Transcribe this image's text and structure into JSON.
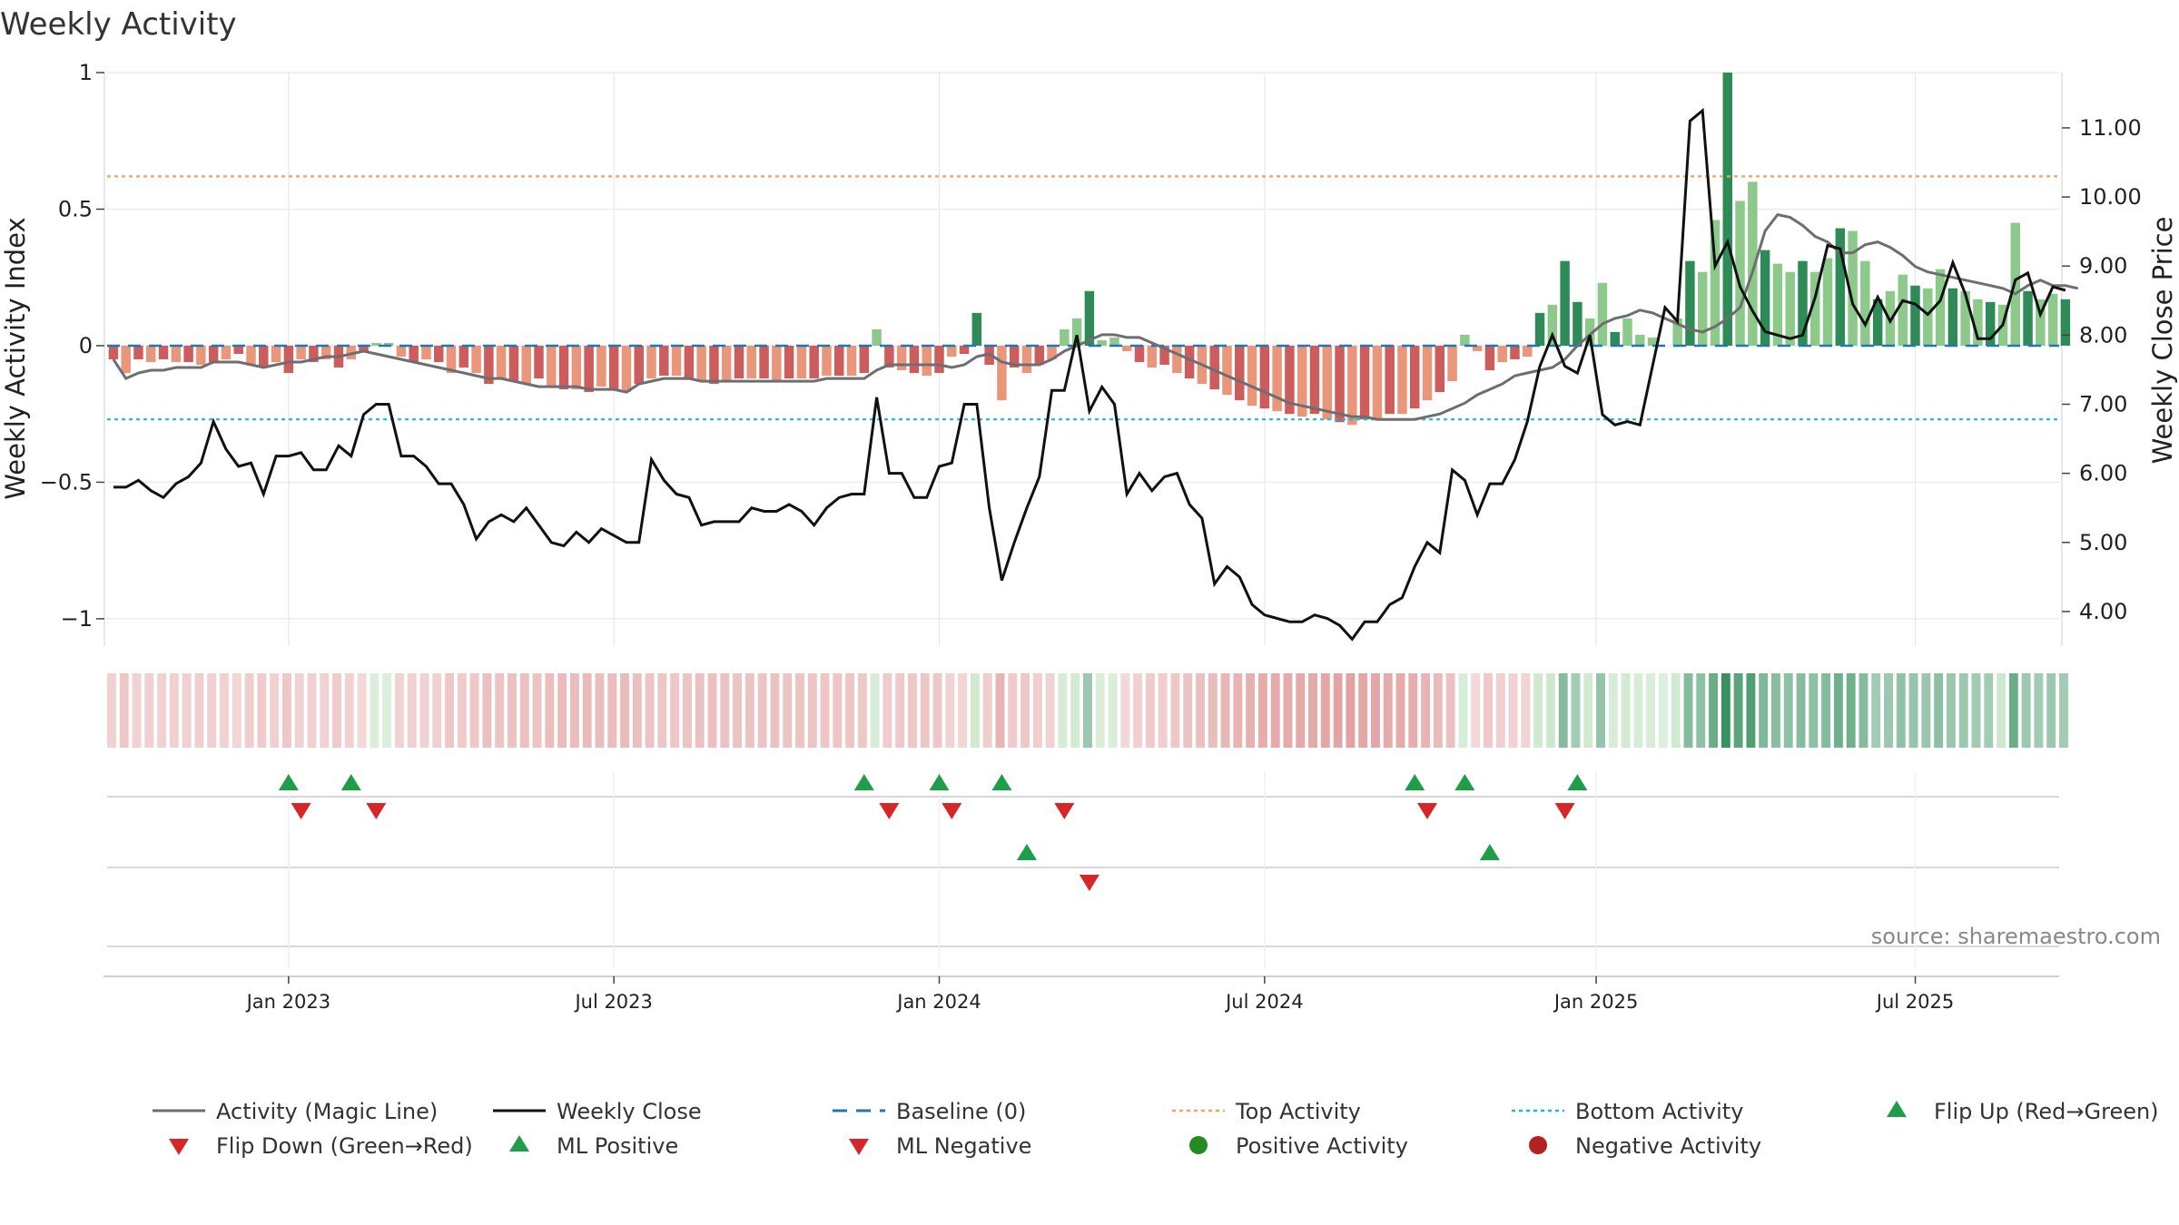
{
  "chart_data": {
    "type": "bar",
    "title": "Weekly Activity",
    "ylabel_left": "Weekly Activity Index",
    "ylabel_right": "Weekly Close Price",
    "source": "source: sharemaestro.com",
    "x_start_week": 0,
    "weeks_total": 156,
    "x_ticks": [
      {
        "label": "Jan 2023",
        "week": 14
      },
      {
        "label": "Jul 2023",
        "week": 40
      },
      {
        "label": "Jan 2024",
        "week": 66
      },
      {
        "label": "Jul 2024",
        "week": 92
      },
      {
        "label": "Jan 2025",
        "week": 118.5
      },
      {
        "label": "Jul 2025",
        "week": 144
      }
    ],
    "y_left": {
      "min": -1.1,
      "max": 1.0,
      "ticks": [
        1,
        0.5,
        0,
        -0.5,
        -1
      ],
      "tick_labels": [
        "1",
        "0.5",
        "0",
        "−0.5",
        "−1"
      ]
    },
    "y_right": {
      "min": 3.5,
      "max": 11.8,
      "ticks": [
        11,
        10,
        9,
        8,
        7,
        6,
        5,
        4
      ],
      "tick_labels": [
        "11.00",
        "10.00",
        "9.00",
        "8.00",
        "7.00",
        "6.00",
        "5.00",
        "4.00"
      ]
    },
    "reference_lines": {
      "top_activity": 0.62,
      "bottom_activity": -0.27,
      "baseline": 0
    },
    "series": [
      {
        "name": "Activity (Magic Line)",
        "values": [
          -0.05,
          -0.12,
          -0.1,
          -0.09,
          -0.09,
          -0.08,
          -0.08,
          -0.08,
          -0.06,
          -0.06,
          -0.06,
          -0.07,
          -0.08,
          -0.07,
          -0.06,
          -0.06,
          -0.05,
          -0.04,
          -0.04,
          -0.03,
          -0.02,
          -0.03,
          -0.04,
          -0.05,
          -0.06,
          -0.07,
          -0.08,
          -0.09,
          -0.1,
          -0.11,
          -0.12,
          -0.12,
          -0.13,
          -0.14,
          -0.15,
          -0.15,
          -0.15,
          -0.15,
          -0.16,
          -0.16,
          -0.16,
          -0.17,
          -0.14,
          -0.13,
          -0.12,
          -0.12,
          -0.12,
          -0.13,
          -0.13,
          -0.13,
          -0.13,
          -0.13,
          -0.13,
          -0.13,
          -0.13,
          -0.13,
          -0.13,
          -0.12,
          -0.12,
          -0.12,
          -0.12,
          -0.09,
          -0.07,
          -0.07,
          -0.07,
          -0.07,
          -0.07,
          -0.08,
          -0.07,
          -0.04,
          -0.03,
          -0.06,
          -0.07,
          -0.07,
          -0.07,
          -0.05,
          -0.02,
          0.0,
          0.02,
          0.04,
          0.04,
          0.03,
          0.03,
          0.01,
          -0.01,
          -0.03,
          -0.05,
          -0.07,
          -0.09,
          -0.11,
          -0.13,
          -0.15,
          -0.17,
          -0.19,
          -0.21,
          -0.22,
          -0.23,
          -0.24,
          -0.25,
          -0.26,
          -0.26,
          -0.27,
          -0.27,
          -0.27,
          -0.27,
          -0.26,
          -0.25,
          -0.23,
          -0.21,
          -0.18,
          -0.16,
          -0.14,
          -0.11,
          -0.1,
          -0.09,
          -0.08,
          -0.05,
          0.0,
          0.04,
          0.08,
          0.1,
          0.11,
          0.13,
          0.12,
          0.1,
          0.08,
          0.06,
          0.05,
          0.07,
          0.1,
          0.14,
          0.27,
          0.42,
          0.48,
          0.47,
          0.44,
          0.4,
          0.38,
          0.34,
          0.34,
          0.37,
          0.38,
          0.36,
          0.33,
          0.29,
          0.27,
          0.26,
          0.25,
          0.24,
          0.23,
          0.22,
          0.21,
          0.19,
          0.22,
          0.24,
          0.22,
          0.22,
          0.21
        ]
      },
      {
        "name": "Weekly Close",
        "values": [
          5.8,
          5.8,
          5.9,
          5.75,
          5.65,
          5.85,
          5.95,
          6.15,
          6.75,
          6.35,
          6.1,
          6.15,
          5.7,
          6.25,
          6.25,
          6.3,
          6.05,
          6.05,
          6.4,
          6.25,
          6.85,
          7.0,
          7.0,
          6.25,
          6.25,
          6.1,
          5.85,
          5.85,
          5.55,
          5.05,
          5.3,
          5.4,
          5.3,
          5.5,
          5.25,
          5.0,
          4.95,
          5.15,
          5.0,
          5.2,
          5.1,
          5.0,
          5.0,
          6.2,
          5.9,
          5.7,
          5.65,
          5.25,
          5.3,
          5.3,
          5.3,
          5.5,
          5.45,
          5.45,
          5.55,
          5.45,
          5.25,
          5.5,
          5.65,
          5.7,
          5.7,
          7.1,
          6.0,
          6.0,
          5.65,
          5.65,
          6.1,
          6.15,
          7.0,
          7.0,
          5.5,
          4.45,
          5.0,
          5.5,
          5.95,
          7.2,
          7.2,
          8.0,
          6.9,
          7.25,
          7.0,
          5.7,
          6.0,
          5.75,
          5.95,
          6.0,
          5.55,
          5.35,
          4.4,
          4.65,
          4.5,
          4.1,
          3.95,
          3.9,
          3.85,
          3.85,
          3.95,
          3.9,
          3.8,
          3.6,
          3.85,
          3.85,
          4.1,
          4.2,
          4.65,
          5.0,
          4.85,
          6.05,
          5.9,
          5.4,
          5.85,
          5.85,
          6.2,
          6.75,
          7.55,
          8.0,
          7.55,
          7.45,
          8.0,
          6.85,
          6.7,
          6.75,
          6.7,
          7.55,
          8.4,
          8.2,
          11.1,
          11.25,
          9.0,
          9.35,
          8.7,
          8.35,
          8.05,
          8.0,
          7.95,
          8.0,
          8.55,
          9.3,
          9.25,
          8.45,
          8.15,
          8.55,
          8.2,
          8.5,
          8.45,
          8.3,
          8.5,
          9.05,
          8.6,
          7.95,
          7.95,
          8.15,
          8.8,
          8.9,
          8.3,
          8.7,
          8.65
        ]
      }
    ],
    "activity_bars": [
      -0.05,
      -0.1,
      -0.05,
      -0.06,
      -0.05,
      -0.06,
      -0.06,
      -0.07,
      -0.06,
      -0.05,
      -0.03,
      -0.07,
      -0.08,
      -0.06,
      -0.1,
      -0.05,
      -0.06,
      -0.05,
      -0.08,
      -0.05,
      -0.02,
      0.01,
      0.01,
      -0.04,
      -0.06,
      -0.05,
      -0.06,
      -0.1,
      -0.08,
      -0.1,
      -0.14,
      -0.12,
      -0.13,
      -0.14,
      -0.12,
      -0.15,
      -0.16,
      -0.16,
      -0.17,
      -0.15,
      -0.16,
      -0.17,
      -0.14,
      -0.12,
      -0.11,
      -0.11,
      -0.12,
      -0.13,
      -0.14,
      -0.13,
      -0.12,
      -0.12,
      -0.12,
      -0.13,
      -0.12,
      -0.12,
      -0.12,
      -0.11,
      -0.11,
      -0.11,
      -0.1,
      0.06,
      -0.08,
      -0.09,
      -0.1,
      -0.11,
      -0.1,
      -0.04,
      -0.03,
      0.12,
      -0.07,
      -0.2,
      -0.08,
      -0.1,
      -0.07,
      -0.05,
      0.06,
      0.1,
      0.2,
      0.02,
      0.03,
      -0.02,
      -0.06,
      -0.08,
      -0.07,
      -0.1,
      -0.12,
      -0.14,
      -0.16,
      -0.18,
      -0.2,
      -0.22,
      -0.23,
      -0.24,
      -0.25,
      -0.26,
      -0.25,
      -0.27,
      -0.28,
      -0.29,
      -0.27,
      -0.27,
      -0.25,
      -0.25,
      -0.23,
      -0.2,
      -0.17,
      -0.13,
      0.04,
      -0.02,
      -0.09,
      -0.06,
      -0.05,
      -0.04,
      0.12,
      0.15,
      0.31,
      0.16,
      0.1,
      0.23,
      0.05,
      0.1,
      0.04,
      0.03,
      0.0,
      0.1,
      0.31,
      0.27,
      0.46,
      1.0,
      0.53,
      0.6,
      0.35,
      0.3,
      0.27,
      0.31,
      0.27,
      0.32,
      0.43,
      0.42,
      0.31,
      0.17,
      0.2,
      0.26,
      0.22,
      0.21,
      0.28,
      0.21,
      0.2,
      0.17,
      0.16,
      0.15,
      0.45,
      0.2,
      0.17,
      0.19,
      0.17
    ],
    "flip_up_weeks": [
      14,
      19,
      60,
      66,
      71,
      104,
      108,
      117
    ],
    "flip_down_weeks": [
      15,
      21,
      62,
      67,
      76,
      105,
      116
    ],
    "ml_positive_weeks": [
      73,
      110
    ],
    "ml_negative_weeks": [
      78
    ],
    "colors": {
      "green_strong": "#2e8b57",
      "green_light": "#8cc98a",
      "red_strong": "#cd5c5c",
      "red_light": "#e9967a",
      "magic_line": "#6e6e72",
      "close_line": "#111111",
      "baseline": "#1f77b4",
      "top_line": "#f4a460",
      "bottom_line": "#17becf",
      "marker_green": "#1f9e49",
      "marker_red": "#d62728",
      "positive_dot": "#228b22",
      "negative_dot": "#b22222",
      "grid": "#e8e8e8"
    },
    "legend": [
      {
        "label": "Activity (Magic Line)",
        "kind": "line-solid-gray"
      },
      {
        "label": "Weekly Close",
        "kind": "line-solid-black"
      },
      {
        "label": "Baseline (0)",
        "kind": "line-dashed-blue"
      },
      {
        "label": "Top Activity",
        "kind": "line-dotted-orange"
      },
      {
        "label": "Bottom Activity",
        "kind": "line-dotted-cyan"
      },
      {
        "label": "Flip Up (Red→Green)",
        "kind": "tri-up-green"
      },
      {
        "label": "Flip Down (Green→Red)",
        "kind": "tri-down-red"
      },
      {
        "label": "ML Positive",
        "kind": "tri-up-green"
      },
      {
        "label": "ML Negative",
        "kind": "tri-down-red"
      },
      {
        "label": "Positive Activity",
        "kind": "dot-green"
      },
      {
        "label": "Negative Activity",
        "kind": "dot-red"
      }
    ]
  }
}
